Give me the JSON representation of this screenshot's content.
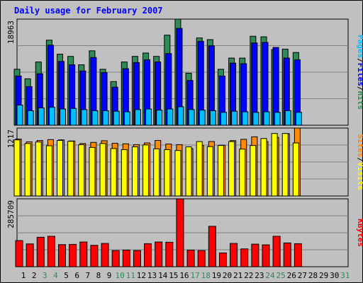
{
  "chart_data": {
    "type": "bar",
    "title": "Daily usage for February 2007",
    "days": [
      "1",
      "2",
      "3",
      "4",
      "5",
      "6",
      "7",
      "8",
      "9",
      "10",
      "11",
      "12",
      "13",
      "14",
      "15",
      "16",
      "17",
      "18",
      "19",
      "20",
      "21",
      "22",
      "23",
      "24",
      "25",
      "26",
      "27",
      "28",
      "29",
      "30",
      "31"
    ],
    "weekend_days": [
      "3",
      "4",
      "10",
      "11",
      "17",
      "18",
      "24",
      "25",
      "31"
    ],
    "panels": [
      {
        "ymax_label": "18963",
        "ymax": 18963,
        "series": [
          {
            "name": "Hits",
            "color": "#2e8b57",
            "values": [
              10000,
              8300,
              11300,
              15200,
              12700,
              12300,
              10800,
              13300,
              10000,
              7800,
              11300,
              12300,
              12900,
              12300,
              16100,
              18963,
              9300,
              15600,
              15300,
              10000,
              12000,
              12000,
              15900,
              15800,
              13500,
              13600,
              13000
            ]
          },
          {
            "name": "Files",
            "color": "#0000ff",
            "values": [
              8800,
              6900,
              9200,
              14300,
              11400,
              10800,
              9700,
              12100,
              9400,
              6800,
              10100,
              11200,
              11700,
              11300,
              12800,
              17300,
              8000,
              15000,
              14200,
              8800,
              11100,
              11000,
              14700,
              14800,
              13900,
              12000,
              11700
            ]
          },
          {
            "name": "Pages",
            "color": "#00bfff",
            "values": [
              3600,
              2600,
              3100,
              3200,
              2900,
              3000,
              2800,
              2600,
              2600,
              2500,
              2400,
              2800,
              2900,
              2700,
              2900,
              3300,
              2800,
              2700,
              2600,
              2300,
              2500,
              2400,
              2300,
              2400,
              2300,
              2600,
              2300
            ]
          }
        ],
        "axis_title": [
          "Pages",
          "/",
          "Files",
          "/",
          "Hits"
        ],
        "axis_colors": [
          "#00bfff",
          "#000000",
          "#0000ff",
          "#000000",
          "#2e8b57"
        ]
      },
      {
        "ymax_label": "1217",
        "ymax": 1217,
        "series": [
          {
            "name": "Visits",
            "color": "#ffff00",
            "values": [
              1005,
              940,
              968,
              900,
              995,
              980,
              918,
              870,
              940,
              850,
              830,
              880,
              915,
              845,
              830,
              815,
              880,
              975,
              885,
              905,
              975,
              840,
              905,
              1030,
              1120,
              1120,
              950
            ]
          },
          {
            "name": "Sites",
            "color": "#ff8c00",
            "values": [
              1020,
              970,
              995,
              1010,
              1005,
              985,
              940,
              960,
              990,
              945,
              935,
              920,
              950,
              995,
              930,
              920,
              848,
              905,
              975,
              910,
              992,
              1015,
              1060,
              975,
              1050,
              1116,
              1217
            ]
          }
        ],
        "axis_title": [
          "Sites",
          "/",
          "Visits"
        ],
        "axis_colors": [
          "#ff8c00",
          "#000000",
          "#ffff00"
        ]
      },
      {
        "ymax_label": "285709",
        "ymax": 285709,
        "series": [
          {
            "name": "KBytes",
            "color": "#ff0000",
            "values": [
              110000,
              96000,
              124000,
              128000,
              93000,
              94000,
              104000,
              90000,
              98000,
              68000,
              70000,
              68000,
              97000,
              104000,
              103000,
              285709,
              70000,
              68000,
              170000,
              58000,
              98000,
              75000,
              95000,
              92000,
              128000,
              100000,
              97000
            ]
          }
        ],
        "axis_title": [
          "KBytes"
        ],
        "axis_colors": [
          "#ff0000"
        ]
      }
    ]
  }
}
